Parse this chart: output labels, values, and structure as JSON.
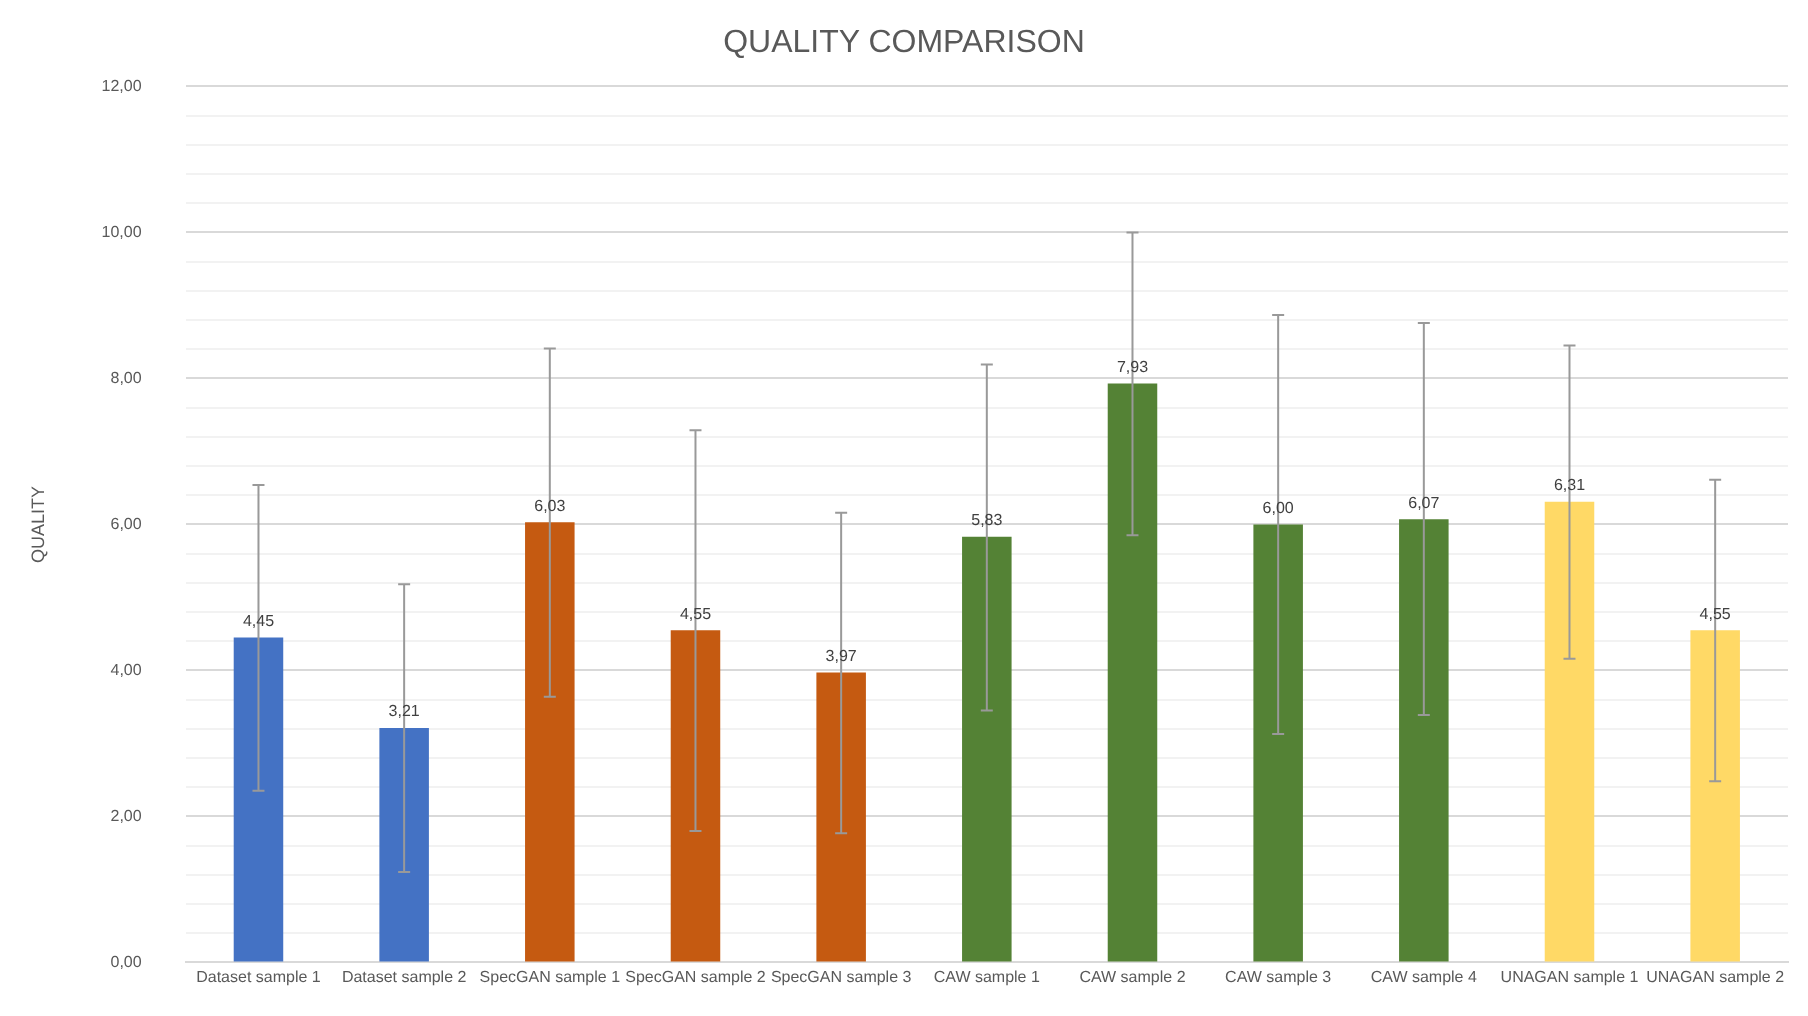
{
  "chart_data": {
    "type": "bar",
    "title": "QUALITY COMPARISON",
    "ylabel": "QUALITY",
    "categories": [
      "Dataset sample 1",
      "Dataset sample 2",
      "SpecGAN sample 1",
      "SpecGAN sample 2",
      "SpecGAN sample 3",
      "CAW sample 1",
      "CAW sample 2",
      "CAW sample 3",
      "CAW sample 4",
      "UNAGAN sample 1",
      "UNAGAN sample 2"
    ],
    "values": [
      4.45,
      3.21,
      6.03,
      4.55,
      3.97,
      5.83,
      7.93,
      6.0,
      6.07,
      6.31,
      4.55
    ],
    "value_labels": [
      "4,45",
      "3,21",
      "6,03",
      "4,55",
      "3,97",
      "5,83",
      "7,93",
      "6,00",
      "6,07",
      "6,31",
      "4,55"
    ],
    "colors": [
      "#4472c4",
      "#4472c4",
      "#c55a11",
      "#c55a11",
      "#c55a11",
      "#548235",
      "#548235",
      "#548235",
      "#548235",
      "#ffd966",
      "#ffd966"
    ],
    "errors": [
      [
        2.35,
        6.54
      ],
      [
        1.24,
        5.18
      ],
      [
        3.64,
        8.41
      ],
      [
        1.8,
        7.29
      ],
      [
        1.77,
        6.16
      ],
      [
        3.45,
        8.19
      ],
      [
        5.85,
        10.0
      ],
      [
        3.13,
        8.87
      ],
      [
        3.39,
        8.76
      ],
      [
        4.16,
        8.45
      ],
      [
        2.48,
        6.61
      ]
    ],
    "ylim": [
      0,
      12
    ],
    "yticks": [
      {
        "value": 0,
        "label": "0,00"
      },
      {
        "value": 0.4,
        "label": null
      },
      {
        "value": 0.8,
        "label": null
      },
      {
        "value": 1.2,
        "label": null
      },
      {
        "value": 1.6,
        "label": null
      },
      {
        "value": 2,
        "label": "2,00"
      },
      {
        "value": 2.4,
        "label": null
      },
      {
        "value": 2.8,
        "label": null
      },
      {
        "value": 3.2,
        "label": null
      },
      {
        "value": 3.6,
        "label": null
      },
      {
        "value": 4,
        "label": "4,00"
      },
      {
        "value": 4.4,
        "label": null
      },
      {
        "value": 4.8,
        "label": null
      },
      {
        "value": 5.2,
        "label": null
      },
      {
        "value": 5.6,
        "label": null
      },
      {
        "value": 6,
        "label": "6,00"
      },
      {
        "value": 6.4,
        "label": null
      },
      {
        "value": 6.8,
        "label": null
      },
      {
        "value": 7.2,
        "label": null
      },
      {
        "value": 7.6,
        "label": null
      },
      {
        "value": 8,
        "label": "8,00"
      },
      {
        "value": 8.4,
        "label": null
      },
      {
        "value": 8.8,
        "label": null
      },
      {
        "value": 9.2,
        "label": null
      },
      {
        "value": 9.6,
        "label": null
      },
      {
        "value": 10,
        "label": "10,00"
      },
      {
        "value": 10.4,
        "label": null
      },
      {
        "value": 10.8,
        "label": null
      },
      {
        "value": 11.2,
        "label": null
      },
      {
        "value": 11.6,
        "label": null
      },
      {
        "value": 12,
        "label": "12,00"
      }
    ],
    "grid": "y",
    "legend": false
  }
}
